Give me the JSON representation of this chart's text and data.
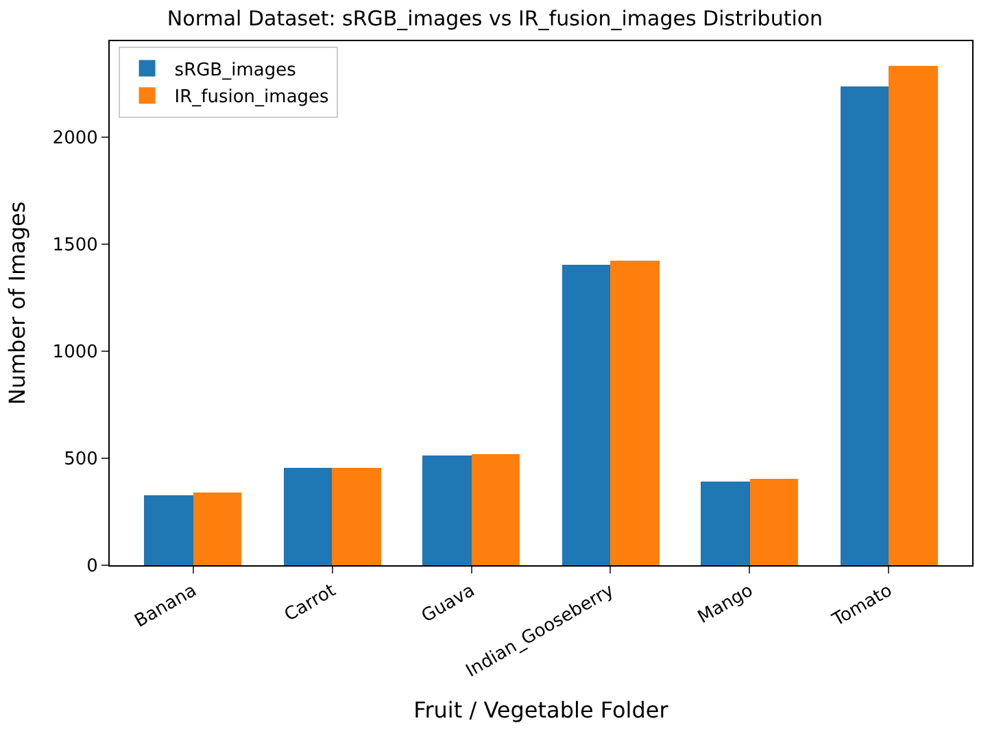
{
  "chart_data": {
    "type": "bar",
    "title": "Normal Dataset: sRGB_images vs IR_fusion_images Distribution",
    "xlabel": "Fruit / Vegetable Folder",
    "ylabel": "Number of Images",
    "categories": [
      "Banana",
      "Carrot",
      "Guava",
      "Indian_Gooseberry",
      "Mango",
      "Tomato"
    ],
    "series": [
      {
        "name": "sRGB_images",
        "color": "#1f77b4",
        "values": [
          324,
          456,
          510,
          1405,
          390,
          2238
        ]
      },
      {
        "name": "IR_fusion_images",
        "color": "#ff7f0e",
        "values": [
          341,
          456,
          517,
          1422,
          405,
          2331
        ]
      }
    ],
    "ylim": [
      0,
      2448
    ],
    "yticks": [
      0,
      500,
      1000,
      1500,
      2000
    ],
    "legend": "top left"
  }
}
